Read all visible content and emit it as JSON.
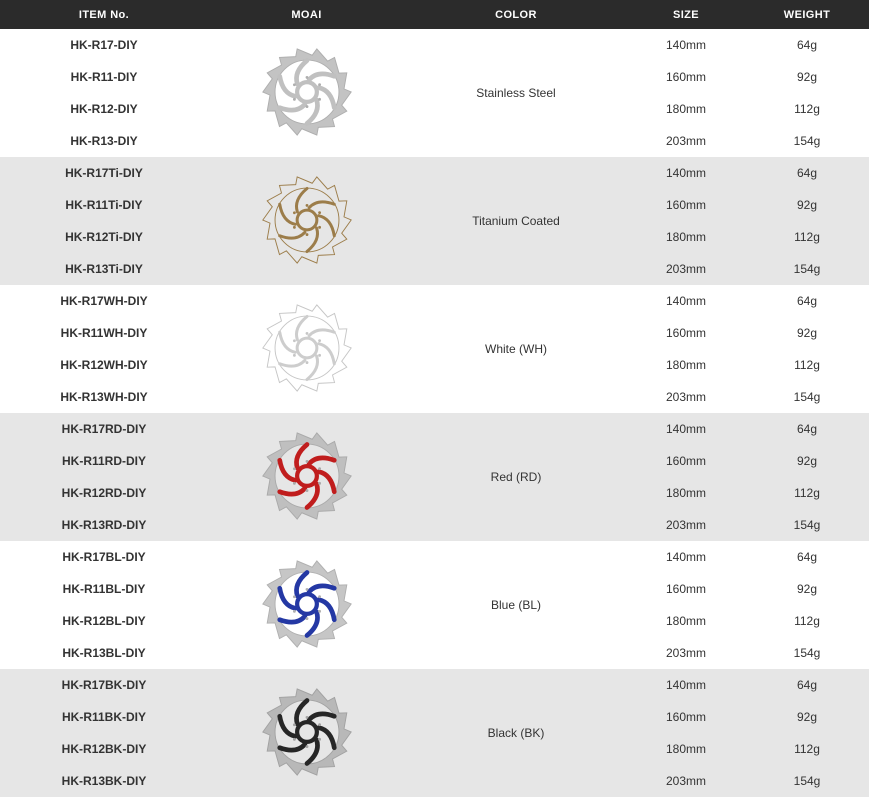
{
  "header": {
    "columns": [
      "ITEM No.",
      "MOAI",
      "COLOR",
      "SIZE",
      "WEIGHT"
    ]
  },
  "theme": {
    "header_bg": "#2b2b2b",
    "header_text": "#ffffff",
    "row_bg": "#ffffff",
    "row_alt_bg": "#e6e6e6",
    "text_color": "#333333"
  },
  "table": {
    "groups": [
      {
        "color": "Stainless Steel",
        "icon": "rotor-stainless-icon",
        "items": [
          "HK-R17-DIY",
          "HK-R11-DIY",
          "HK-R12-DIY",
          "HK-R13-DIY"
        ],
        "sizes": [
          "140mm",
          "160mm",
          "180mm",
          "203mm"
        ],
        "weights": [
          "64g",
          "92g",
          "112g",
          "154g"
        ],
        "rotor": {
          "ring_fill": "#c3c3c3",
          "ring_stroke": "#aeaeae",
          "spoke_color": "#c0c0c0",
          "spoke_width": 5
        }
      },
      {
        "color": "Titanium Coated",
        "icon": "rotor-titanium-icon",
        "items": [
          "HK-R17Ti-DIY",
          "HK-R11Ti-DIY",
          "HK-R12Ti-DIY",
          "HK-R13Ti-DIY"
        ],
        "sizes": [
          "140mm",
          "160mm",
          "180mm",
          "203mm"
        ],
        "weights": [
          "64g",
          "92g",
          "112g",
          "154g"
        ],
        "rotor": {
          "ring_fill": "none",
          "ring_stroke": "#9c7d4a",
          "spoke_color": "#9c7d4a",
          "spoke_width": 3.2
        }
      },
      {
        "color": "White (WH)",
        "icon": "rotor-white-icon",
        "items": [
          "HK-R17WH-DIY",
          "HK-R11WH-DIY",
          "HK-R12WH-DIY",
          "HK-R13WH-DIY"
        ],
        "sizes": [
          "140mm",
          "160mm",
          "180mm",
          "203mm"
        ],
        "weights": [
          "64g",
          "92g",
          "112g",
          "154g"
        ],
        "rotor": {
          "ring_fill": "#ffffff",
          "ring_stroke": "#c6c6c6",
          "spoke_color": "#cdcdcd",
          "spoke_width": 3.2
        }
      },
      {
        "color": "Red (RD)",
        "icon": "rotor-red-icon",
        "items": [
          "HK-R17RD-DIY",
          "HK-R11RD-DIY",
          "HK-R12RD-DIY",
          "HK-R13RD-DIY"
        ],
        "sizes": [
          "140mm",
          "160mm",
          "180mm",
          "203mm"
        ],
        "weights": [
          "64g",
          "92g",
          "112g",
          "154g"
        ],
        "rotor": {
          "ring_fill": "#bfbfbf",
          "ring_stroke": "#aaaaaa",
          "spoke_color": "#c01d1d",
          "spoke_width": 5
        }
      },
      {
        "color": "Blue (BL)",
        "icon": "rotor-blue-icon",
        "items": [
          "HK-R17BL-DIY",
          "HK-R11BL-DIY",
          "HK-R12BL-DIY",
          "HK-R13BL-DIY"
        ],
        "sizes": [
          "140mm",
          "160mm",
          "180mm",
          "203mm"
        ],
        "weights": [
          "64g",
          "92g",
          "112g",
          "154g"
        ],
        "rotor": {
          "ring_fill": "#c6c6c6",
          "ring_stroke": "#b0b0b0",
          "spoke_color": "#2438a4",
          "spoke_width": 5
        }
      },
      {
        "color": "Black (BK)",
        "icon": "rotor-black-icon",
        "items": [
          "HK-R17BK-DIY",
          "HK-R11BK-DIY",
          "HK-R12BK-DIY",
          "HK-R13BK-DIY"
        ],
        "sizes": [
          "140mm",
          "160mm",
          "180mm",
          "203mm"
        ],
        "weights": [
          "64g",
          "92g",
          "112g",
          "154g"
        ],
        "rotor": {
          "ring_fill": "#b8b8b8",
          "ring_stroke": "#a2a2a2",
          "spoke_color": "#262626",
          "spoke_width": 5
        }
      }
    ]
  }
}
